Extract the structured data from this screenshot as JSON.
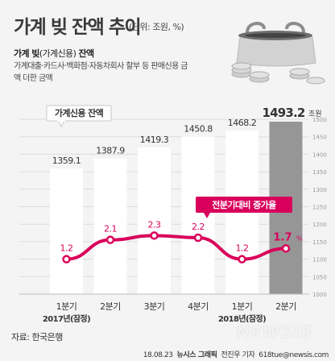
{
  "header": {
    "title": "가계 빚 잔액 추이",
    "unit": "(단위: 조원, %)"
  },
  "subtitle": {
    "bold": "가계 빚",
    "paren": "(가계신용)",
    "suffix": " 잔액",
    "desc": "가계대출·카드사·백화점·자동차회사 할부 등 판매신용 금액 더한 금액"
  },
  "source": "자료: 한국은행",
  "credit": {
    "date": "18.08.23",
    "agency": "뉴시스 그래픽",
    "author": "전진우 기자",
    "email": "618tue@newsis.com",
    "watermark": "NEWSIS"
  },
  "colors": {
    "bar": "#ffffff",
    "bar_last": "#969696",
    "line": "#d9005b",
    "growth_label_bg": "#d9005b",
    "background": "#f4f4f4"
  },
  "chart_data": {
    "type": "bar",
    "categories": [
      "1분기",
      "2분기",
      "3분기",
      "4분기",
      "1분기",
      "2분기"
    ],
    "year_groups": [
      {
        "label": "2017년(잠정)",
        "start": 0,
        "end": 3
      },
      {
        "label": "2018년(잠정)",
        "start": 4,
        "end": 5
      }
    ],
    "series": [
      {
        "name": "가계신용 잔액",
        "values": [
          1359.1,
          1387.9,
          1419.3,
          1450.8,
          1468.2,
          1493.2
        ],
        "labels": [
          "1359.1",
          "1387.9",
          "1419.3",
          "1450.8",
          "1468.2",
          "1493.2"
        ],
        "last_unit": "조원"
      },
      {
        "name": "전분기대비 증가율",
        "values": [
          1.2,
          2.1,
          2.3,
          2.2,
          1.2,
          1.7
        ],
        "labels": [
          "1.2",
          "2.1",
          "2.3",
          "2.2",
          "1.2",
          "1.7"
        ],
        "last_unit": "%"
      }
    ],
    "ylim": [
      1000,
      1500
    ],
    "yticks": [
      1000,
      1050,
      1100,
      1150,
      1200,
      1250,
      1300,
      1350,
      1400,
      1450,
      1500
    ],
    "grid": true
  }
}
